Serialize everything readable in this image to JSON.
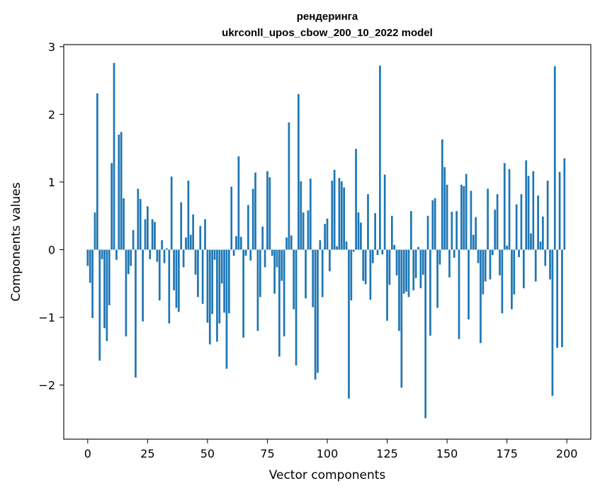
{
  "chart_data": {
    "type": "bar",
    "title_line1": "рендеринга",
    "title_line2": "ukrconll_upos_cbow_200_10_2022 model",
    "xlabel": "Vector components",
    "ylabel": "Components values",
    "xlim": [
      -10,
      210
    ],
    "ylim": [
      -2.8,
      3.03
    ],
    "xticks": [
      0,
      25,
      50,
      75,
      100,
      125,
      150,
      175,
      200
    ],
    "yticks": [
      -2,
      -1,
      0,
      1,
      2,
      3
    ],
    "bar_color": "#1f77b4",
    "grid": false,
    "legend": "none",
    "values": [
      -0.24,
      -0.49,
      -1.01,
      0.55,
      2.31,
      -1.64,
      -0.14,
      -1.16,
      -1.35,
      -0.82,
      1.28,
      2.76,
      -0.15,
      1.7,
      1.74,
      0.76,
      -1.28,
      -0.36,
      -0.24,
      0.29,
      -1.89,
      0.9,
      0.75,
      -1.06,
      0.45,
      0.64,
      -0.14,
      0.45,
      0.41,
      -0.18,
      -0.75,
      0.14,
      -0.2,
      0.02,
      -1.09,
      1.08,
      -0.6,
      -0.86,
      -0.92,
      0.7,
      -0.26,
      0.18,
      1.02,
      0.22,
      0.52,
      -0.37,
      -0.7,
      0.35,
      -0.8,
      0.45,
      -1.08,
      -1.4,
      -0.95,
      -0.15,
      -1.36,
      -1.09,
      -0.5,
      -0.93,
      -1.76,
      -0.94,
      0.93,
      -0.09,
      0.2,
      1.38,
      0.19,
      -1.3,
      -0.09,
      0.66,
      -0.16,
      0.9,
      1.14,
      -1.2,
      -0.7,
      0.34,
      -0.26,
      1.16,
      1.07,
      -0.09,
      -0.65,
      -0.26,
      -1.58,
      -0.46,
      -1.28,
      0.18,
      1.88,
      0.21,
      -0.88,
      -1.71,
      2.3,
      1.01,
      0.55,
      -0.72,
      0.58,
      1.05,
      -0.85,
      -1.92,
      -1.82,
      0.14,
      -0.7,
      0.38,
      0.46,
      -0.32,
      1.02,
      1.18,
      0.05,
      1.06,
      1.01,
      0.92,
      0.12,
      -2.2,
      -0.75,
      -0.03,
      1.49,
      0.55,
      0.4,
      -0.46,
      -0.51,
      0.82,
      -0.74,
      -0.2,
      0.54,
      -0.08,
      2.72,
      -0.07,
      1.11,
      -1.05,
      -0.52,
      0.5,
      0.07,
      -0.38,
      -1.2,
      -2.04,
      -0.65,
      -0.62,
      -0.7,
      0.57,
      -0.6,
      -0.42,
      0.04,
      -0.57,
      -0.37,
      -2.49,
      0.5,
      -1.27,
      0.73,
      0.76,
      -0.86,
      -0.22,
      1.63,
      1.22,
      0.96,
      -0.41,
      0.56,
      -0.12,
      0.57,
      -1.32,
      0.96,
      0.94,
      1.12,
      -1.03,
      0.87,
      0.22,
      0.48,
      -0.2,
      -1.38,
      -0.66,
      -0.47,
      0.9,
      -0.44,
      -0.08,
      0.59,
      0.82,
      -0.38,
      -0.94,
      1.28,
      0.06,
      1.19,
      -0.88,
      -0.66,
      0.67,
      -0.11,
      0.82,
      -0.57,
      1.32,
      1.09,
      0.24,
      1.16,
      -0.47,
      0.8,
      0.12,
      0.49,
      -0.24,
      1.02,
      -0.44,
      -2.16,
      2.71,
      -1.45,
      1.15,
      -1.44,
      1.35
    ]
  }
}
